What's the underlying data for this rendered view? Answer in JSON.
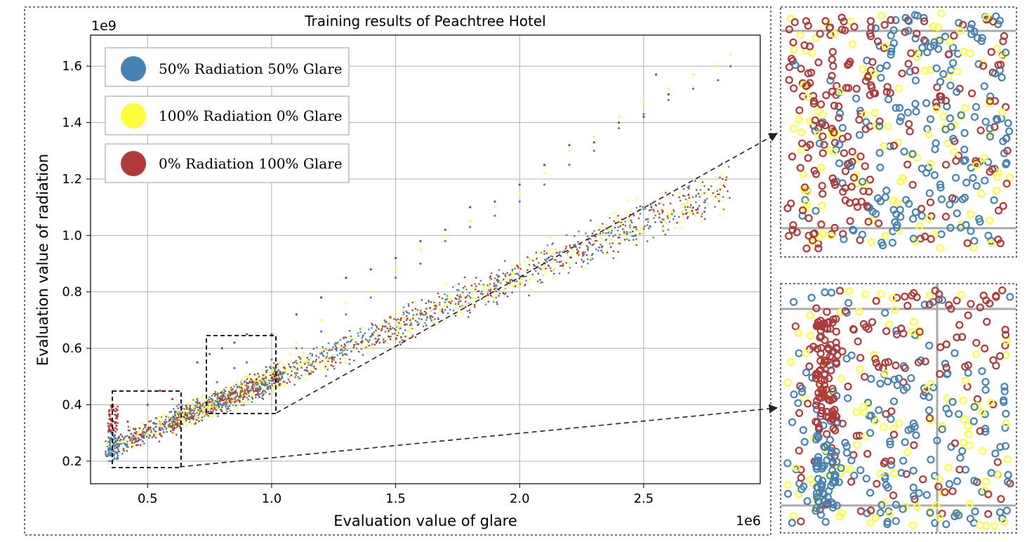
{
  "chart_data": {
    "type": "scatter",
    "title": "Training results of Peachtree Hotel",
    "xlabel": "Evaluation value of glare",
    "ylabel": "Evaluation value of radiation",
    "x_offset_label": "1e6",
    "y_offset_label": "1e9",
    "xlim": [
      0.27,
      2.97
    ],
    "ylim": [
      0.12,
      1.71
    ],
    "xticks": [
      0.5,
      1.0,
      1.5,
      2.0,
      2.5
    ],
    "xtick_labels": [
      "0.5",
      "1.0",
      "1.5",
      "2.0",
      "2.5"
    ],
    "yticks": [
      0.2,
      0.4,
      0.6,
      0.8,
      1.0,
      1.2,
      1.4,
      1.6
    ],
    "ytick_labels": [
      "0.2",
      "0.4",
      "0.6",
      "0.8",
      "1.0",
      "1.2",
      "1.4",
      "1.6"
    ],
    "grid": true,
    "legend_position": "top-left",
    "series": [
      {
        "name": "50% Radiation 50% Glare",
        "color": "#4682b4",
        "values": [
          [
            0.35,
            0.22
          ],
          [
            0.36,
            0.25
          ],
          [
            0.37,
            0.28
          ],
          [
            0.38,
            0.21
          ],
          [
            0.42,
            0.25
          ],
          [
            0.48,
            0.29
          ],
          [
            0.55,
            0.33
          ],
          [
            0.62,
            0.37
          ],
          [
            0.7,
            0.42
          ],
          [
            0.78,
            0.48
          ],
          [
            0.85,
            0.53
          ],
          [
            0.9,
            0.55
          ],
          [
            0.95,
            0.5
          ],
          [
            1.0,
            0.56
          ],
          [
            1.1,
            0.6
          ],
          [
            1.2,
            0.66
          ],
          [
            1.3,
            0.72
          ],
          [
            1.4,
            0.78
          ],
          [
            1.5,
            0.85
          ],
          [
            1.6,
            0.9
          ],
          [
            1.7,
            0.98
          ],
          [
            1.8,
            1.03
          ],
          [
            1.9,
            1.07
          ],
          [
            2.0,
            1.12
          ],
          [
            2.1,
            1.18
          ],
          [
            2.2,
            1.25
          ],
          [
            2.3,
            1.3
          ],
          [
            2.4,
            1.38
          ],
          [
            2.5,
            1.43
          ],
          [
            2.6,
            1.48
          ],
          [
            2.7,
            1.52
          ],
          [
            2.8,
            1.55
          ],
          [
            2.85,
            1.6
          ]
        ]
      },
      {
        "name": "100% Radiation 0% Glare",
        "color": "#ffff3c",
        "values": [
          [
            0.35,
            0.2
          ],
          [
            0.4,
            0.27
          ],
          [
            0.5,
            0.3
          ],
          [
            0.6,
            0.36
          ],
          [
            0.7,
            0.4
          ],
          [
            0.8,
            0.45
          ],
          [
            0.9,
            0.5
          ],
          [
            1.0,
            0.55
          ],
          [
            1.1,
            0.62
          ],
          [
            1.2,
            0.7
          ],
          [
            1.3,
            0.76
          ],
          [
            1.4,
            0.8
          ],
          [
            1.5,
            0.88
          ],
          [
            1.6,
            0.95
          ],
          [
            1.7,
            1.0
          ],
          [
            1.8,
            1.05
          ],
          [
            1.9,
            1.1
          ],
          [
            2.0,
            1.15
          ],
          [
            2.1,
            1.22
          ],
          [
            2.2,
            1.3
          ],
          [
            2.3,
            1.35
          ],
          [
            2.4,
            1.42
          ],
          [
            2.5,
            1.47
          ],
          [
            2.6,
            1.52
          ],
          [
            2.7,
            1.57
          ],
          [
            2.8,
            1.6
          ],
          [
            2.85,
            1.64
          ]
        ]
      },
      {
        "name": "0% Radiation 100% Glare",
        "color": "#b03a3a",
        "values": [
          [
            0.35,
            0.35
          ],
          [
            0.36,
            0.4
          ],
          [
            0.42,
            0.34
          ],
          [
            0.5,
            0.4
          ],
          [
            0.55,
            0.45
          ],
          [
            0.6,
            0.42
          ],
          [
            0.7,
            0.55
          ],
          [
            0.75,
            0.58
          ],
          [
            0.8,
            0.6
          ],
          [
            0.85,
            0.62
          ],
          [
            0.9,
            0.65
          ],
          [
            1.0,
            0.65
          ],
          [
            1.1,
            0.72
          ],
          [
            1.2,
            0.78
          ],
          [
            1.3,
            0.85
          ],
          [
            1.4,
            0.88
          ],
          [
            1.5,
            0.92
          ],
          [
            1.6,
            0.98
          ],
          [
            1.7,
            1.02
          ],
          [
            1.8,
            1.1
          ],
          [
            1.9,
            1.12
          ],
          [
            2.0,
            1.18
          ],
          [
            2.1,
            1.25
          ],
          [
            2.2,
            1.32
          ],
          [
            2.3,
            1.33
          ],
          [
            2.4,
            1.4
          ],
          [
            2.5,
            1.42
          ],
          [
            2.55,
            1.57
          ],
          [
            2.6,
            1.5
          ]
        ]
      }
    ],
    "zoom_boxes": [
      {
        "name": "upper",
        "xrange": [
          0.7,
          0.97
        ],
        "yrange": [
          0.37,
          0.64
        ]
      },
      {
        "name": "lower",
        "xrange": [
          0.31,
          0.58
        ],
        "yrange": [
          0.18,
          0.45
        ]
      }
    ]
  },
  "palette": {
    "blue": "#4682b4",
    "yellow": "#ffff3c",
    "red": "#b03a3a",
    "grid": "#b0b0b0"
  }
}
